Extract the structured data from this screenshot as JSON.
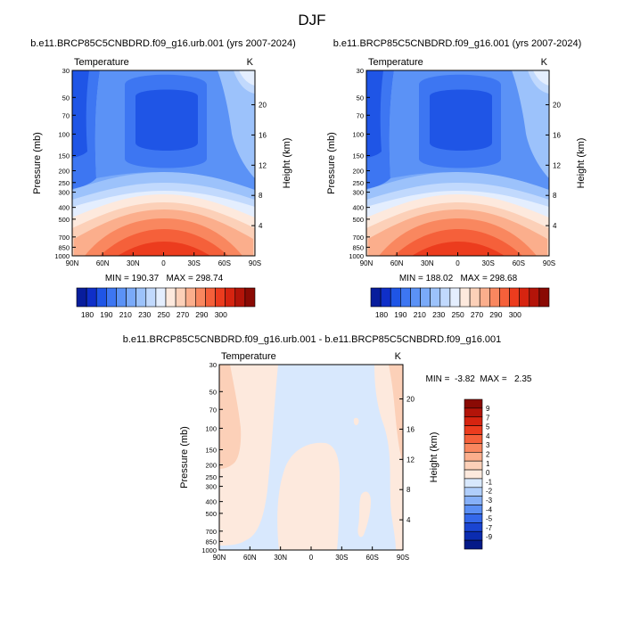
{
  "figure": {
    "title": "DJF"
  },
  "chart_data": [
    {
      "type": "heatmap",
      "title": "b.e11.BRCP85C5CNBDRD.f09_g16.urb.001 (yrs 2007-2024)",
      "left_label": "Temperature",
      "right_label": "K",
      "ylabel": "Pressure (mb)",
      "y2label": "Height (km)",
      "x_ticks": [
        "90N",
        "60N",
        "30N",
        "0",
        "30S",
        "60S",
        "90S"
      ],
      "p_ticks": [
        "30",
        "50",
        "70",
        "100",
        "150",
        "200",
        "250",
        "300",
        "400",
        "500",
        "700",
        "850",
        "1000"
      ],
      "p_values": [
        30,
        50,
        70,
        100,
        150,
        200,
        250,
        300,
        400,
        500,
        700,
        850,
        1000
      ],
      "z_ticks": [
        "4",
        "8",
        "12",
        "16",
        "20"
      ],
      "z_values": [
        4,
        8,
        12,
        16,
        20
      ],
      "min_max_text": "MIN = 190.37   MAX = 298.74",
      "min": 190.37,
      "max": 298.74
    },
    {
      "type": "heatmap",
      "title": "b.e11.BRCP85C5CNBDRD.f09_g16.001 (yrs 2007-2024)",
      "left_label": "Temperature",
      "right_label": "K",
      "ylabel": "Pressure (mb)",
      "y2label": "Height (km)",
      "x_ticks": [
        "90N",
        "60N",
        "30N",
        "0",
        "30S",
        "60S",
        "90S"
      ],
      "p_ticks": [
        "30",
        "50",
        "70",
        "100",
        "150",
        "200",
        "250",
        "300",
        "400",
        "500",
        "700",
        "850",
        "1000"
      ],
      "p_values": [
        30,
        50,
        70,
        100,
        150,
        200,
        250,
        300,
        400,
        500,
        700,
        850,
        1000
      ],
      "z_ticks": [
        "4",
        "8",
        "12",
        "16",
        "20"
      ],
      "z_values": [
        4,
        8,
        12,
        16,
        20
      ],
      "min_max_text": "MIN = 188.02   MAX = 298.68",
      "min": 188.02,
      "max": 298.68
    },
    {
      "type": "heatmap",
      "title": "b.e11.BRCP85C5CNBDRD.f09_g16.urb.001 - b.e11.BRCP85C5CNBDRD.f09_g16.001",
      "left_label": "Temperature",
      "right_label": "K",
      "ylabel": "Pressure (mb)",
      "y2label": "Height (km)",
      "x_ticks": [
        "90N",
        "60N",
        "30N",
        "0",
        "30S",
        "60S",
        "90S"
      ],
      "p_ticks": [
        "30",
        "50",
        "70",
        "100",
        "150",
        "200",
        "250",
        "300",
        "400",
        "500",
        "700",
        "850",
        "1000"
      ],
      "p_values": [
        30,
        50,
        70,
        100,
        150,
        200,
        250,
        300,
        400,
        500,
        700,
        850,
        1000
      ],
      "z_ticks": [
        "4",
        "8",
        "12",
        "16",
        "20"
      ],
      "z_values": [
        4,
        8,
        12,
        16,
        20
      ],
      "min_max_text": "MIN =  -3.82  MAX =   2.35",
      "min": -3.82,
      "max": 2.35
    }
  ],
  "colorbars": {
    "temperature": {
      "labels": [
        "180",
        "190",
        "210",
        "230",
        "250",
        "270",
        "290",
        "300"
      ],
      "colors": [
        "#081d9c",
        "#0f2fc8",
        "#1f55e6",
        "#3d76f2",
        "#5b92f6",
        "#7aaaf9",
        "#9cc2fb",
        "#c1d9fd",
        "#e4eefe",
        "#fde9dd",
        "#fcd0b8",
        "#fbae8c",
        "#f9875f",
        "#f5603a",
        "#ec3c1e",
        "#d62410",
        "#b31409",
        "#8a0a04"
      ]
    },
    "difference": {
      "labels": [
        "9",
        "7",
        "5",
        "4",
        "3",
        "2",
        "1",
        "0",
        "-1",
        "-2",
        "-3",
        "-4",
        "-5",
        "-7",
        "-9"
      ],
      "colors": [
        "#8a0a04",
        "#b31409",
        "#d62410",
        "#ec3c1e",
        "#f5603a",
        "#f9875f",
        "#fbae8c",
        "#fcd0b8",
        "#fde9dd",
        "#d8e8fd",
        "#b0cefb",
        "#86b0f8",
        "#5b8ff4",
        "#3468ea",
        "#1a45d2",
        "#0b2cb0",
        "#041a88"
      ]
    }
  }
}
